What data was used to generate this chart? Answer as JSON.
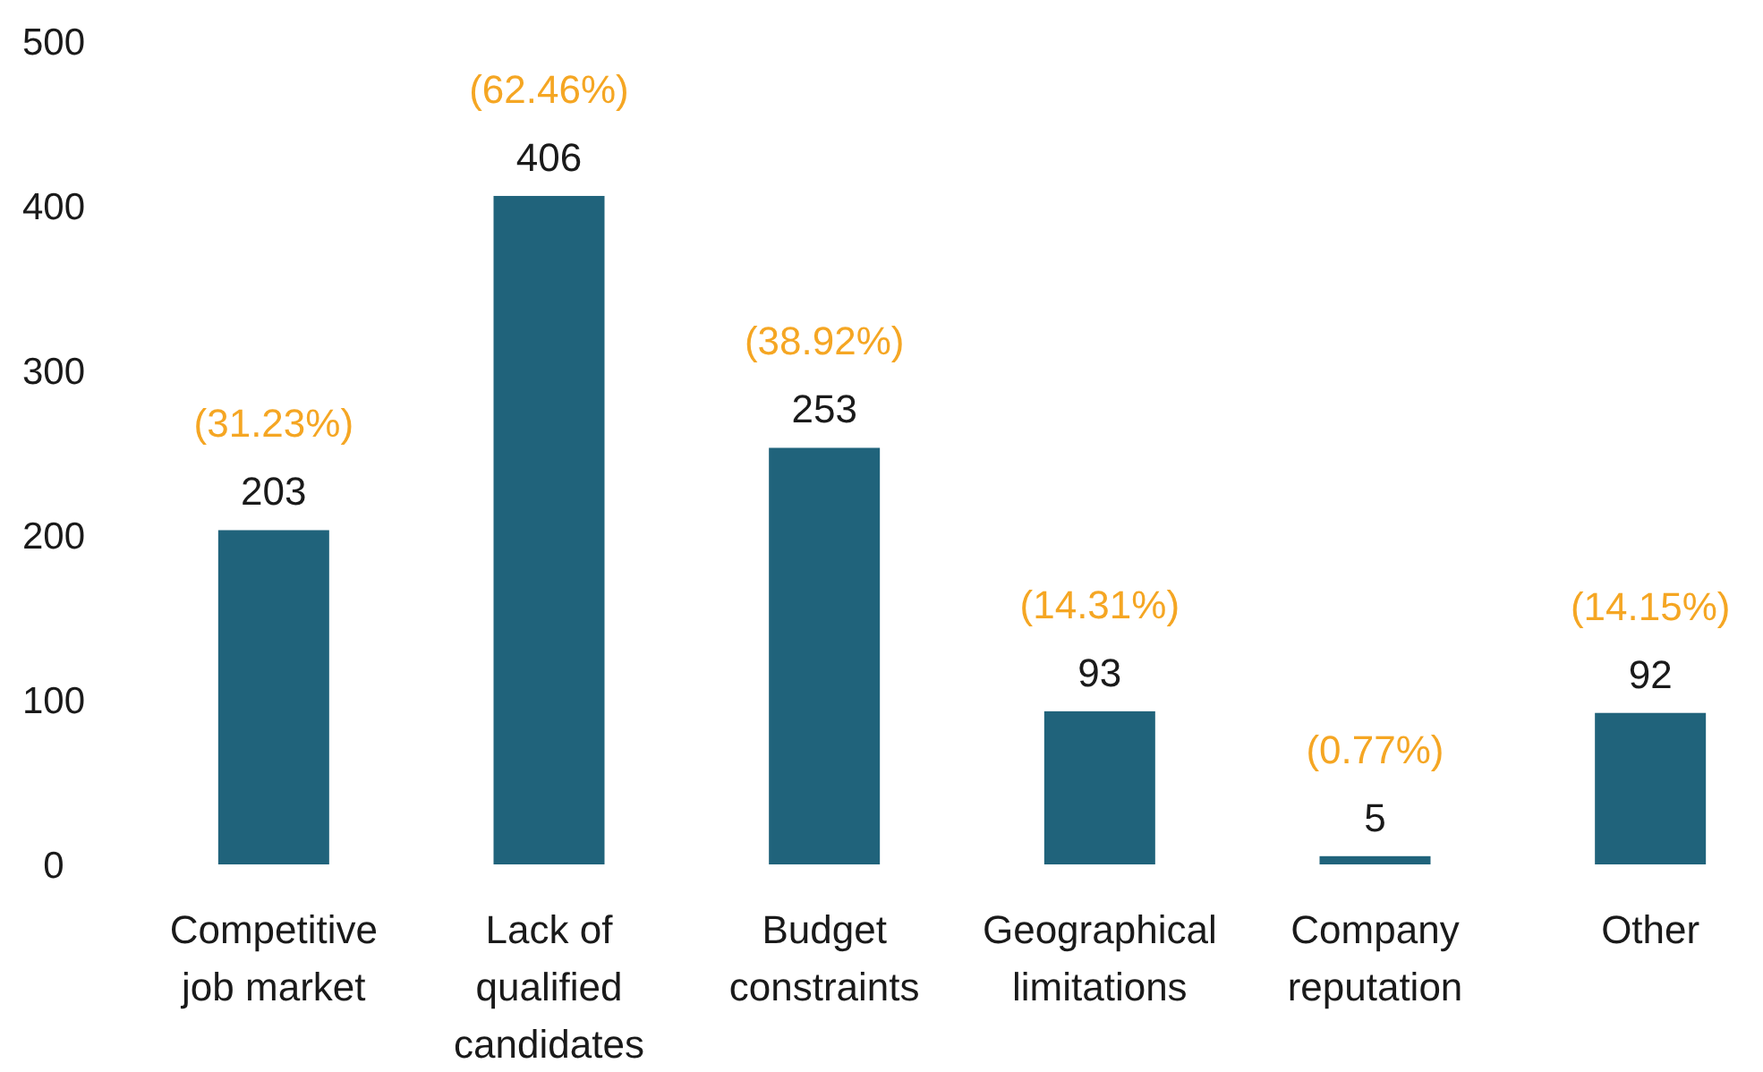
{
  "chart_data": {
    "type": "bar",
    "categories": [
      "Competitive job market",
      "Lack of qualified candidates",
      "Budget constraints",
      "Geographical limitations",
      "Company reputation",
      "Other"
    ],
    "values": [
      203,
      406,
      253,
      93,
      5,
      92
    ],
    "color": "#20637b",
    "ylim": [
      0,
      500
    ],
    "yticks": [
      0,
      100,
      200,
      300,
      400,
      500
    ],
    "grid": false,
    "data_labels": true,
    "annotations": [
      {
        "text": "(31.23%)",
        "x": "Competitive job market",
        "y": 203
      },
      {
        "text": "(62.46%)",
        "x": "Lack of qualified candidates",
        "y": 406
      },
      {
        "text": "(38.92%)",
        "x": "Budget constraints",
        "y": 253
      },
      {
        "text": "(14.31%)",
        "x": "Geographical limitations",
        "y": 93
      },
      {
        "text": "(0.77%)",
        "x": "Company reputation",
        "y": 5
      },
      {
        "text": "(14.15%)",
        "x": "Other",
        "y": 92
      }
    ]
  }
}
